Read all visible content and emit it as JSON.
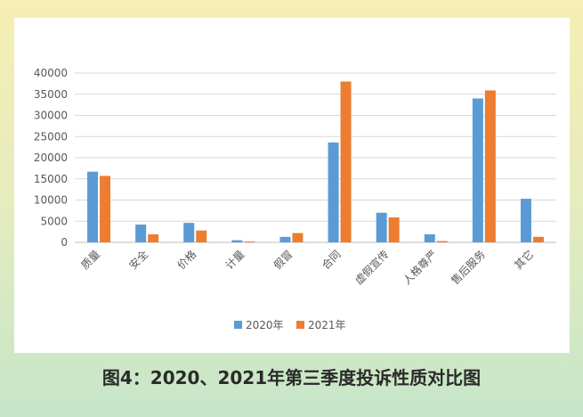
{
  "caption": "图4：2020、2021年第三季度投诉性质对比图",
  "chart_data": {
    "type": "bar",
    "categories": [
      "质量",
      "安全",
      "价格",
      "计量",
      "假冒",
      "合同",
      "虚假宣传",
      "人格尊严",
      "售后服务",
      "其它"
    ],
    "series": [
      {
        "name": "2020年",
        "color": "#5b9bd5",
        "values": [
          16700,
          4200,
          4600,
          500,
          1300,
          23600,
          7000,
          1900,
          34000,
          10300
        ]
      },
      {
        "name": "2021年",
        "color": "#ed7d31",
        "values": [
          15700,
          1900,
          2800,
          200,
          2200,
          38000,
          5900,
          300,
          35900,
          1300
        ]
      }
    ],
    "y_ticks": [
      "0",
      "5000",
      "10000",
      "15000",
      "20000",
      "25000",
      "30000",
      "35000",
      "40000"
    ],
    "ylim": [
      0,
      40000
    ],
    "grid": true,
    "legend_position": "bottom"
  }
}
